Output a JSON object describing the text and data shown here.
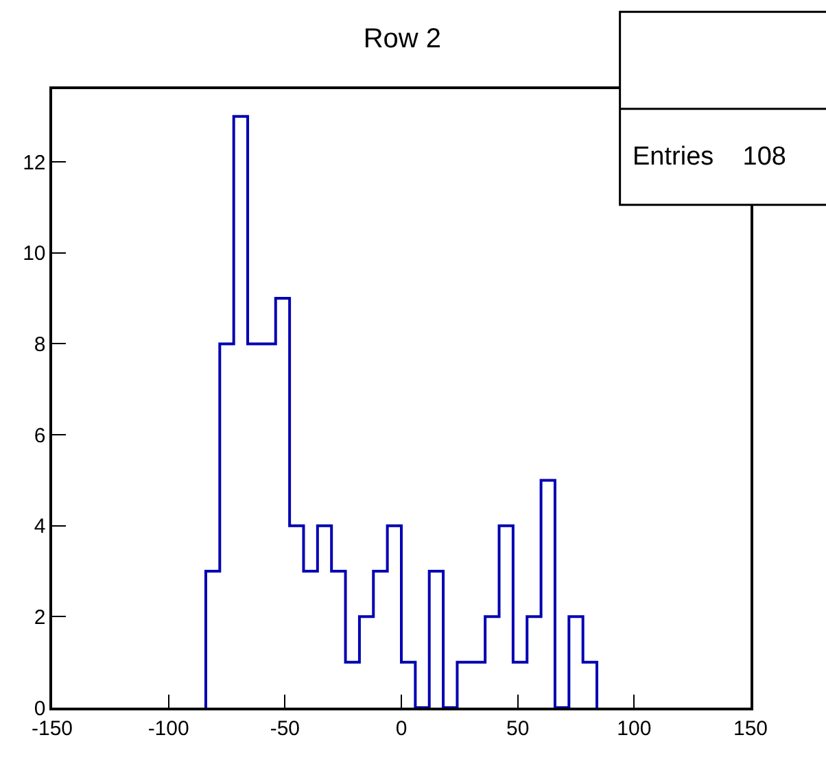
{
  "chart_data": {
    "type": "histogram",
    "title": "Row 2",
    "bins": [
      -84,
      -78,
      -72,
      -66,
      -60,
      -54,
      -48,
      -42,
      -36,
      -30,
      -24,
      -18,
      -12,
      -6,
      0,
      6,
      12,
      18,
      24,
      30,
      36,
      42,
      48,
      54,
      60,
      66,
      72,
      78,
      84
    ],
    "values": [
      3,
      8,
      13,
      8,
      8,
      9,
      4,
      3,
      4,
      3,
      1,
      2,
      3,
      4,
      1,
      0,
      3,
      0,
      1,
      1,
      2,
      4,
      1,
      2,
      5,
      0,
      2,
      1
    ],
    "color": "#0000b3",
    "xlim": [
      -150,
      150
    ],
    "xticks": [
      -150,
      -100,
      -50,
      0,
      50,
      100,
      150
    ],
    "ylim": [
      0,
      13.6
    ],
    "yticks": [
      0,
      2,
      4,
      6,
      8,
      10,
      12
    ],
    "annotations": [
      "Entries    108"
    ]
  }
}
